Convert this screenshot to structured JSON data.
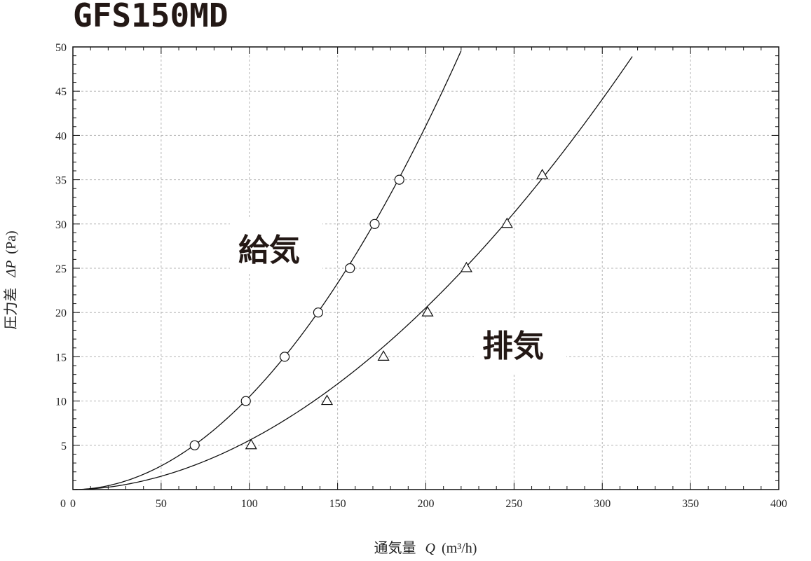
{
  "chart_data": {
    "type": "line",
    "title": "GFS150MD",
    "xlabel": "通気量",
    "xlabel_symbol": "Q",
    "xlabel_unit": "(m³/h)",
    "ylabel": "圧力差",
    "ylabel_symbol": "ΔP",
    "ylabel_unit": "(Pa)",
    "xlim": [
      0,
      400
    ],
    "ylim": [
      0,
      50
    ],
    "x_ticks": [
      "0",
      "50",
      "100",
      "150",
      "200",
      "250",
      "300",
      "350",
      "400"
    ],
    "y_ticks": [
      "5",
      "10",
      "15",
      "20",
      "25",
      "30",
      "35",
      "40",
      "45",
      "50"
    ],
    "y_origin_label": "0",
    "grid": true,
    "series": [
      {
        "name": "給気",
        "marker": "circle",
        "points": [
          [
            69,
            5
          ],
          [
            98,
            10
          ],
          [
            120,
            15
          ],
          [
            139,
            20
          ],
          [
            157,
            25
          ],
          [
            171,
            30
          ],
          [
            185,
            35
          ]
        ],
        "curve": {
          "form": "power",
          "a": 0.001204,
          "b": 1.97,
          "x_end": 220
        }
      },
      {
        "name": "排気",
        "marker": "triangle",
        "points": [
          [
            101,
            5
          ],
          [
            144,
            10
          ],
          [
            176,
            15
          ],
          [
            201,
            20
          ],
          [
            223,
            25
          ],
          [
            246,
            30
          ],
          [
            266,
            35.5
          ]
        ],
        "curve": {
          "form": "power",
          "a": 0.000944,
          "b": 1.885,
          "x_end": 317
        }
      }
    ],
    "colors": {
      "line": "#111111",
      "grid": "#b5b5b5",
      "frame": "#111111",
      "text": "#231815"
    }
  }
}
